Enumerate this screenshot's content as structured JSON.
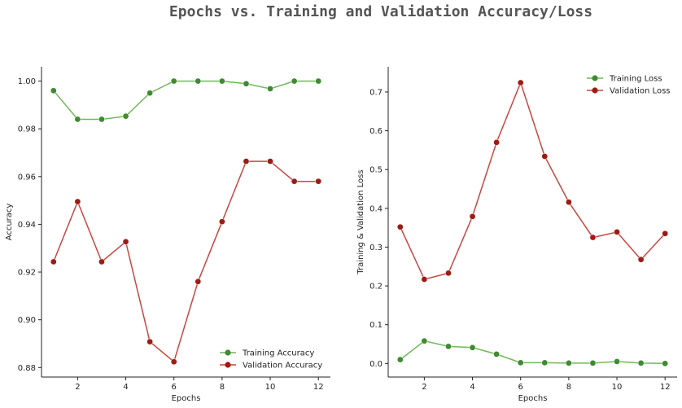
{
  "title": "Epochs vs. Training and Validation Accuracy/Loss",
  "colors": {
    "training_line": "#6fb85a",
    "training_marker": "#3f8a32",
    "validation_line": "#c9463f",
    "validation_marker": "#9e1a14",
    "title": "#555555"
  },
  "chart_data": [
    {
      "type": "line",
      "xlabel": "Epochs",
      "ylabel": "Accuracy",
      "xlim": [
        0.5,
        12.5
      ],
      "ylim": [
        0.876,
        1.006
      ],
      "xticks": [
        2,
        4,
        6,
        8,
        10,
        12
      ],
      "yticks": [
        0.88,
        0.9,
        0.92,
        0.94,
        0.96,
        0.98,
        1.0
      ],
      "ytick_labels": [
        "0.88",
        "0.90",
        "0.92",
        "0.94",
        "0.96",
        "0.98",
        "1.00"
      ],
      "legend_position": "lower-right",
      "x": [
        1,
        2,
        3,
        4,
        5,
        6,
        7,
        8,
        9,
        10,
        11,
        12
      ],
      "series": [
        {
          "name": "Training Accuracy",
          "color": "training",
          "values": [
            0.996,
            0.984,
            0.984,
            0.9853,
            0.995,
            1.0,
            1.0,
            1.0,
            0.9989,
            0.9968,
            1.0,
            1.0
          ]
        },
        {
          "name": "Validation Accuracy",
          "color": "validation",
          "values": [
            0.9243,
            0.9495,
            0.9243,
            0.9327,
            0.8908,
            0.8824,
            0.916,
            0.9411,
            0.9664,
            0.9664,
            0.958,
            0.958
          ]
        }
      ]
    },
    {
      "type": "line",
      "xlabel": "Epochs",
      "ylabel": "Training & Validation Loss",
      "xlim": [
        0.5,
        12.5
      ],
      "ylim": [
        -0.035,
        0.765
      ],
      "xticks": [
        2,
        4,
        6,
        8,
        10,
        12
      ],
      "yticks": [
        0.0,
        0.1,
        0.2,
        0.3,
        0.4,
        0.5,
        0.6,
        0.7
      ],
      "ytick_labels": [
        "0.0",
        "0.1",
        "0.2",
        "0.3",
        "0.4",
        "0.5",
        "0.6",
        "0.7"
      ],
      "legend_position": "upper-right",
      "x": [
        1,
        2,
        3,
        4,
        5,
        6,
        7,
        8,
        9,
        10,
        11,
        12
      ],
      "series": [
        {
          "name": "Training Loss",
          "color": "training",
          "values": [
            0.01,
            0.058,
            0.044,
            0.041,
            0.024,
            0.002,
            0.002,
            0.001,
            0.001,
            0.005,
            0.001,
            0.0
          ]
        },
        {
          "name": "Validation Loss",
          "color": "validation",
          "values": [
            0.352,
            0.217,
            0.233,
            0.379,
            0.57,
            0.724,
            0.534,
            0.416,
            0.325,
            0.339,
            0.268,
            0.335
          ]
        }
      ]
    }
  ]
}
